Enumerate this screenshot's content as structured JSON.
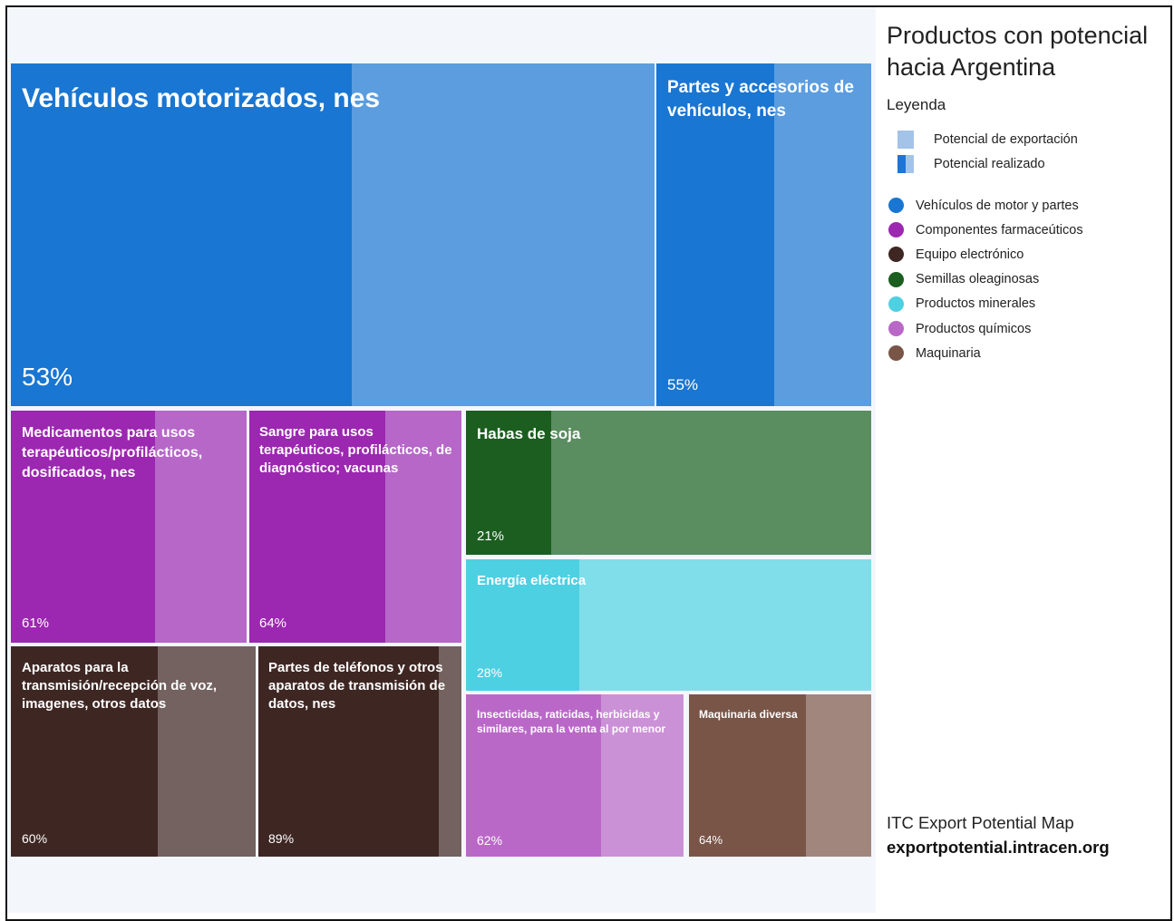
{
  "chart_data": {
    "type": "treemap",
    "title": "Productos con potencial hacia Argentina",
    "legend_title": "Leyenda",
    "legend_potential": [
      {
        "label": "Potencial de exportación",
        "color": "#a4c3e8"
      },
      {
        "label": "Potencial realizado",
        "color": "#1f74d6"
      }
    ],
    "categories": [
      {
        "label": "Vehículos de motor y partes",
        "color": "#1976d2"
      },
      {
        "label": "Componentes farmaceúticos",
        "color": "#9c27b0"
      },
      {
        "label": "Equipo electrónico",
        "color": "#3e2723"
      },
      {
        "label": "Semillas oleaginosas",
        "color": "#1b5e20"
      },
      {
        "label": "Productos minerales",
        "color": "#4dd0e1"
      },
      {
        "label": "Productos químicos",
        "color": "#ba68c8"
      },
      {
        "label": "Maquinaria",
        "color": "#795548"
      }
    ],
    "tiles": [
      {
        "id": "vehiculos",
        "label": "Vehículos motorizados, nes",
        "percent_label": "53%",
        "realized": 0.53,
        "category": "Vehículos de motor y partes",
        "dark": "#1976d2",
        "light": "#5b9ddf"
      },
      {
        "id": "partes-vehiculos",
        "label": "Partes y accesorios de vehículos, nes",
        "percent_label": "55%",
        "realized": 0.55,
        "category": "Vehículos de motor y partes",
        "dark": "#1976d2",
        "light": "#5b9ddf"
      },
      {
        "id": "medicamentos",
        "label": "Medicamentos para usos terapéuticos/profilácticos, dosificados, nes",
        "percent_label": "61%",
        "realized": 0.61,
        "category": "Componentes farmaceúticos",
        "dark": "#9c27b0",
        "light": "#b667c8"
      },
      {
        "id": "sangre",
        "label": "Sangre para usos terapéuticos, profilácticos, de diagnóstico; vacunas",
        "percent_label": "64%",
        "realized": 0.64,
        "category": "Componentes farmaceúticos",
        "dark": "#9c27b0",
        "light": "#b667c8"
      },
      {
        "id": "habas-soja",
        "label": "Habas de soja",
        "percent_label": "21%",
        "realized": 0.21,
        "category": "Semillas oleaginosas",
        "dark": "#1b5e20",
        "light": "#5a8d60"
      },
      {
        "id": "energia",
        "label": "Energía eléctrica",
        "percent_label": "28%",
        "realized": 0.28,
        "category": "Productos minerales",
        "dark": "#4dd0e1",
        "light": "#80deea"
      },
      {
        "id": "aparatos",
        "label": "Aparatos para la transmisión/recepción de voz, imagenes, otros datos",
        "percent_label": "60%",
        "realized": 0.6,
        "category": "Equipo electrónico",
        "dark": "#3e2723",
        "light": "#73625f"
      },
      {
        "id": "telefonos",
        "label": "Partes de teléfonos y otros aparatos de transmisión de datos, nes",
        "percent_label": "89%",
        "realized": 0.89,
        "category": "Equipo electrónico",
        "dark": "#3e2723",
        "light": "#73625f"
      },
      {
        "id": "insecticidas",
        "label": "Insecticidas, raticidas, herbicidas y similares, para la venta al por menor",
        "percent_label": "62%",
        "realized": 0.62,
        "category": "Productos químicos",
        "dark": "#ba68c8",
        "light": "#cb91d6"
      },
      {
        "id": "maquinaria",
        "label": "Maquinaria diversa",
        "percent_label": "64%",
        "realized": 0.64,
        "category": "Maquinaria",
        "dark": "#795548",
        "light": "#a0867c"
      }
    ],
    "source_line1": "ITC Export Potential Map",
    "source_line2": "exportpotential.intracen.org"
  }
}
